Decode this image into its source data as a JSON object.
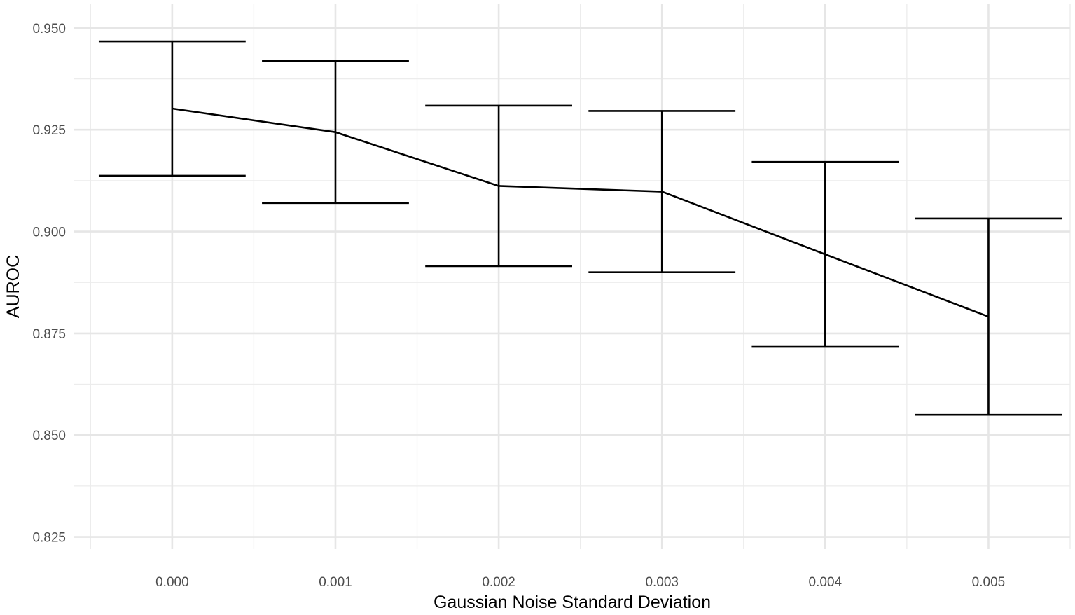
{
  "chart_data": {
    "type": "line",
    "xlabel": "Gaussian Noise Standard Deviation",
    "ylabel": "AUROC",
    "x_ticks": [
      "0.000",
      "0.001",
      "0.002",
      "0.003",
      "0.004",
      "0.005"
    ],
    "y_ticks": [
      "0.825",
      "0.850",
      "0.875",
      "0.900",
      "0.925",
      "0.950"
    ],
    "ylim": [
      0.822,
      0.956
    ],
    "xlim": [
      -0.0006,
      0.0055
    ],
    "grid": true,
    "error_bars": true,
    "colors": {
      "line": "#000000",
      "grid": "#ebebeb",
      "tick_text": "#4d4d4d"
    },
    "points": [
      {
        "x": 0.0,
        "y": 0.9302,
        "lower": 0.9137,
        "upper": 0.9467
      },
      {
        "x": 0.001,
        "y": 0.9244,
        "lower": 0.907,
        "upper": 0.9419
      },
      {
        "x": 0.002,
        "y": 0.9112,
        "lower": 0.8915,
        "upper": 0.9309
      },
      {
        "x": 0.003,
        "y": 0.9098,
        "lower": 0.89,
        "upper": 0.9296
      },
      {
        "x": 0.004,
        "y": 0.8944,
        "lower": 0.8717,
        "upper": 0.9171
      },
      {
        "x": 0.005,
        "y": 0.8791,
        "lower": 0.855,
        "upper": 0.9032
      }
    ]
  }
}
